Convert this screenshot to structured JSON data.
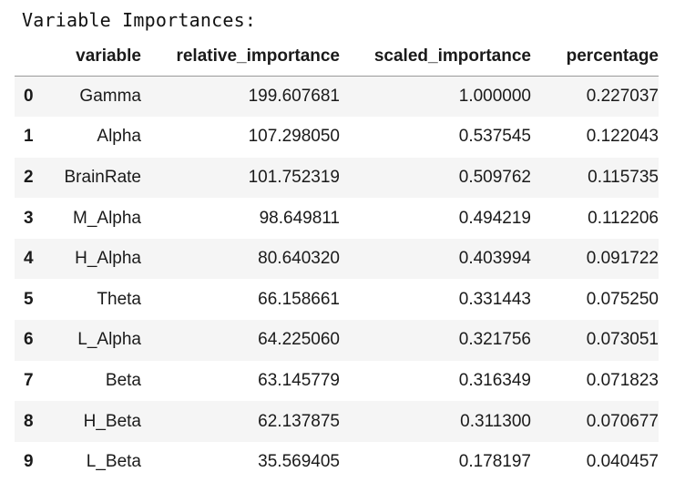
{
  "caption": "Variable Importances:",
  "columns": [
    "",
    "variable",
    "relative_importance",
    "scaled_importance",
    "percentage"
  ],
  "rows": [
    {
      "index": "0",
      "variable": "Gamma",
      "relative_importance": "199.607681",
      "scaled_importance": "1.000000",
      "percentage": "0.227037"
    },
    {
      "index": "1",
      "variable": "Alpha",
      "relative_importance": "107.298050",
      "scaled_importance": "0.537545",
      "percentage": "0.122043"
    },
    {
      "index": "2",
      "variable": "BrainRate",
      "relative_importance": "101.752319",
      "scaled_importance": "0.509762",
      "percentage": "0.115735"
    },
    {
      "index": "3",
      "variable": "M_Alpha",
      "relative_importance": "98.649811",
      "scaled_importance": "0.494219",
      "percentage": "0.112206"
    },
    {
      "index": "4",
      "variable": "H_Alpha",
      "relative_importance": "80.640320",
      "scaled_importance": "0.403994",
      "percentage": "0.091722"
    },
    {
      "index": "5",
      "variable": "Theta",
      "relative_importance": "66.158661",
      "scaled_importance": "0.331443",
      "percentage": "0.075250"
    },
    {
      "index": "6",
      "variable": "L_Alpha",
      "relative_importance": "64.225060",
      "scaled_importance": "0.321756",
      "percentage": "0.073051"
    },
    {
      "index": "7",
      "variable": "Beta",
      "relative_importance": "63.145779",
      "scaled_importance": "0.316349",
      "percentage": "0.071823"
    },
    {
      "index": "8",
      "variable": "H_Beta",
      "relative_importance": "62.137875",
      "scaled_importance": "0.311300",
      "percentage": "0.070677"
    },
    {
      "index": "9",
      "variable": "L_Beta",
      "relative_importance": "35.569405",
      "scaled_importance": "0.178197",
      "percentage": "0.040457"
    }
  ]
}
